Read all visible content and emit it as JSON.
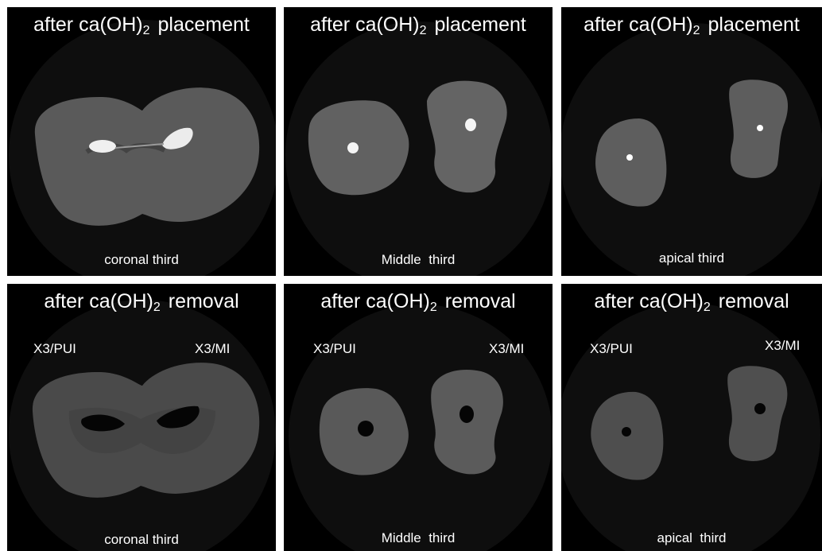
{
  "panels": [
    {
      "title_pre": "after ca(OH)",
      "title_sub": "2",
      "title_post": "placement",
      "caption": "coronal third"
    },
    {
      "title_pre": "after ca(OH)",
      "title_sub": "2",
      "title_post": "placement",
      "caption": "Middle  third"
    },
    {
      "title_pre": "after ca(OH)",
      "title_sub": "2",
      "title_post": "placement",
      "caption": "apical third"
    },
    {
      "title_pre": "after ca(OH)",
      "title_sub": "2",
      "title_post": "removal",
      "caption": "coronal third",
      "label_left": "X3/PUI",
      "label_right": "X3/MI"
    },
    {
      "title_pre": "after ca(OH)",
      "title_sub": "2",
      "title_post": "removal",
      "caption": "Middle  third",
      "label_left": "X3/PUI",
      "label_right": "X3/MI"
    },
    {
      "title_pre": "after ca(OH)",
      "title_sub": "2",
      "title_post": "removal",
      "caption": "apical  third",
      "label_left": "X3/PUI",
      "label_right": "X3/MI"
    }
  ]
}
